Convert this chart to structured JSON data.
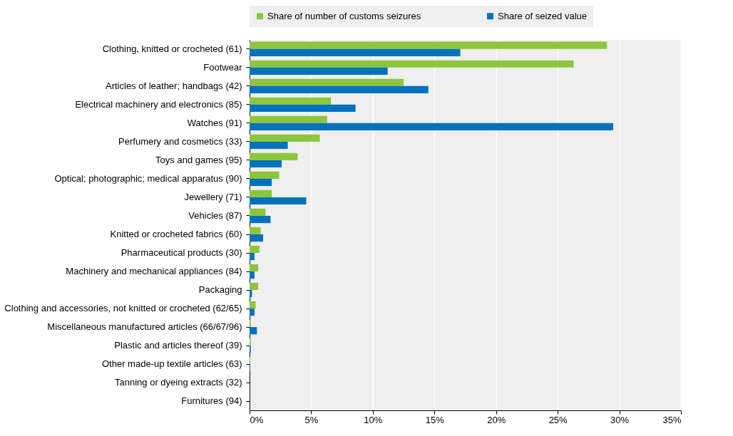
{
  "chart_data": {
    "type": "bar",
    "orientation": "horizontal",
    "categories": [
      "Clothing, knitted or crocheted (61)",
      "Footwear",
      "Articles of leather; handbags (42)",
      "Electrical machinery and electronics (85)",
      "Watches (91)",
      "Perfumery and cosmetics (33)",
      "Toys and games (95)",
      "Optical; photographic; medical apparatus (90)",
      "Jewellery (71)",
      "Vehicles (87)",
      "Knitted or crocheted fabrics (60)",
      "Pharmaceutical products (30)",
      "Machinery and mechanical appliances (84)",
      "Packaging",
      "Clothing and accessories, not knitted or crocheted (62/65)",
      "Miscellaneous manufactured articles (66/67/96)",
      "Plastic and articles thereof (39)",
      "Other made-up textile articles (63)",
      "Tanning or dyeing extracts (32)",
      "Furnitures (94)"
    ],
    "series": [
      {
        "name": "Share of number of customs seizures",
        "color": "#8cc63f",
        "values": [
          29.0,
          26.3,
          12.5,
          6.6,
          6.3,
          5.7,
          3.9,
          2.4,
          1.8,
          1.3,
          0.9,
          0.8,
          0.7,
          0.7,
          0.5,
          0.1,
          0.1,
          0.05,
          0,
          0
        ]
      },
      {
        "name": "Share of seized value",
        "color": "#0072bc",
        "values": [
          17.1,
          11.2,
          14.5,
          8.6,
          29.5,
          3.1,
          2.6,
          1.8,
          4.6,
          1.7,
          1.1,
          0.4,
          0.4,
          0.2,
          0.4,
          0.6,
          0.1,
          0.05,
          0,
          0
        ]
      }
    ],
    "xlim": [
      0,
      35
    ],
    "xticks": [
      {
        "value": 0,
        "label": "0%"
      },
      {
        "value": 5,
        "label": "5%"
      },
      {
        "value": 10,
        "label": "10%"
      },
      {
        "value": 15,
        "label": "15%"
      },
      {
        "value": 20,
        "label": "20%"
      },
      {
        "value": 25,
        "label": "25%"
      },
      {
        "value": 30,
        "label": "30%"
      },
      {
        "value": 35,
        "label": "35%"
      }
    ],
    "grid": true,
    "legend": "top"
  }
}
